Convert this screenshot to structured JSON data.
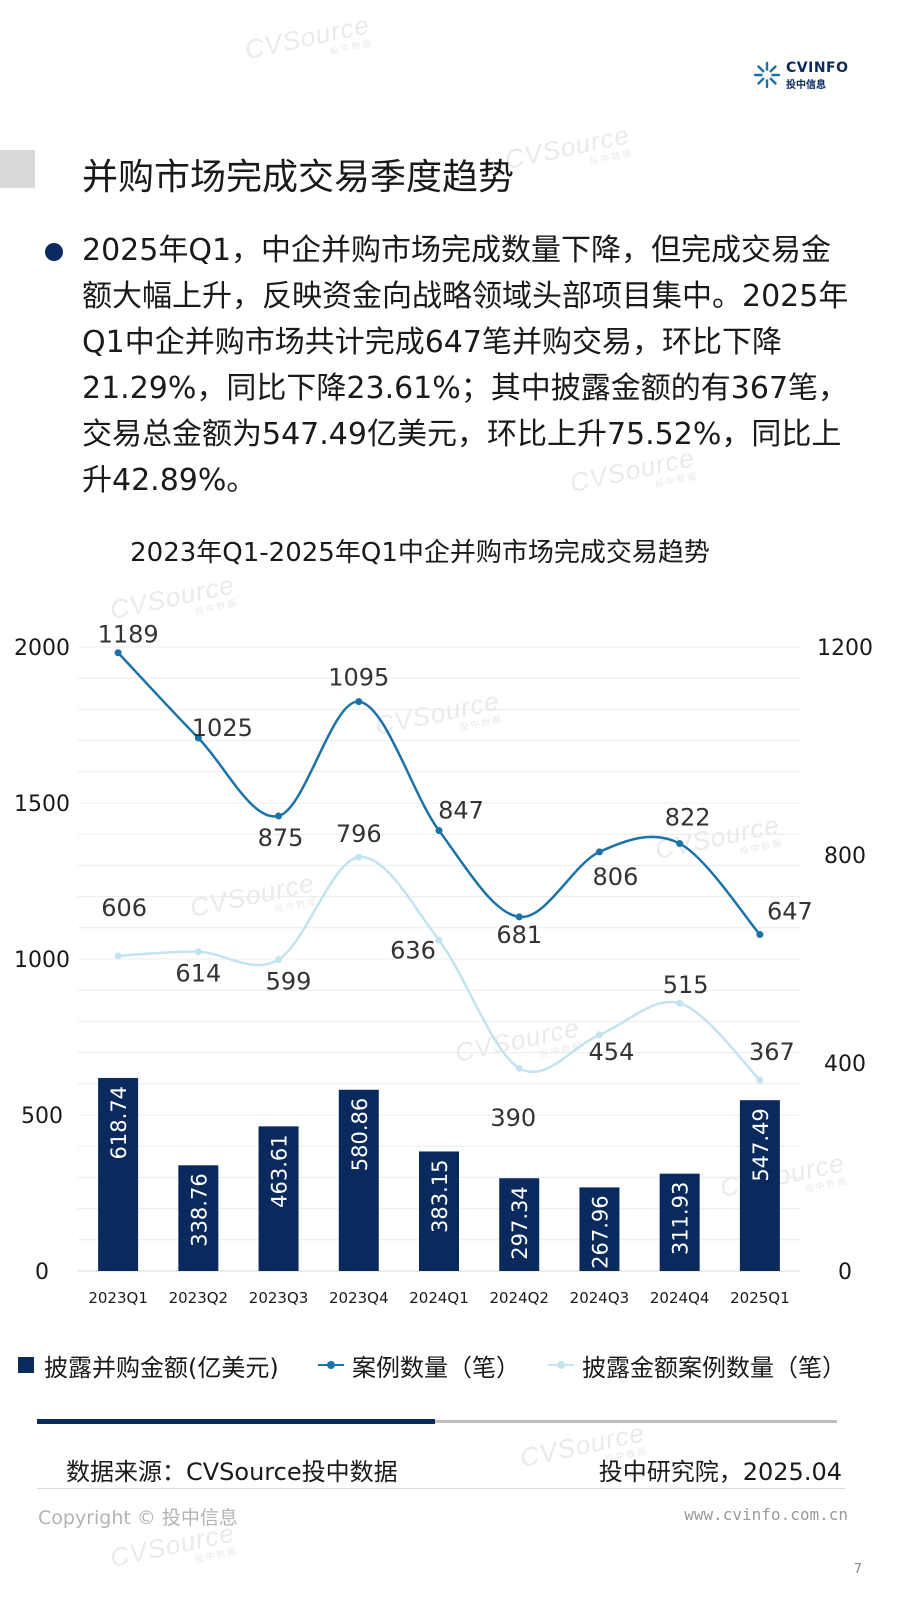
{
  "header": {
    "logo_top": "CVINFO",
    "logo_bottom": "投中信息",
    "title": "并购市场完成交易季度趋势"
  },
  "summary": {
    "text": "2025年Q1，中企并购市场完成数量下降，但完成交易金额大幅上升，反映资金向战略领域头部项目集中。2025年Q1中企并购市场共计完成647笔并购交易，环比下降21.29%，同比下降23.61%；其中披露金额的有367笔，交易总金额为547.49亿美元，环比上升75.52%，同比上升42.89%。"
  },
  "chart_data": {
    "type": "bar",
    "title": "2023年Q1-2025年Q1中企并购市场完成交易趋势",
    "categories": [
      "2023Q1",
      "2023Q2",
      "2023Q3",
      "2023Q4",
      "2024Q1",
      "2024Q2",
      "2024Q3",
      "2024Q4",
      "2025Q1"
    ],
    "series": [
      {
        "name": "披露并购金额(亿美元)",
        "type": "bar",
        "axis": "left",
        "values": [
          618.74,
          338.76,
          463.61,
          580.86,
          383.15,
          297.34,
          267.96,
          311.93,
          547.49
        ]
      },
      {
        "name": "案例数量（笔）",
        "type": "line",
        "axis": "right",
        "values": [
          1189,
          1025,
          875,
          1095,
          847,
          681,
          806,
          822,
          647
        ]
      },
      {
        "name": "披露金额案例数量（笔）",
        "type": "line",
        "axis": "right",
        "values": [
          606,
          614,
          599,
          796,
          636,
          390,
          454,
          515,
          367
        ]
      }
    ],
    "y_left": {
      "min": 0,
      "max": 2000,
      "ticks": [
        0,
        500,
        1000,
        1500,
        2000
      ]
    },
    "y_right": {
      "min": 0,
      "max": 1200,
      "ticks": [
        0,
        400,
        800,
        1200
      ]
    },
    "legend_position": "bottom",
    "colors": {
      "bar": "#0a2a5e",
      "line_total": "#1a73a8",
      "line_disclosed": "#c2e3f0"
    }
  },
  "footer": {
    "source": "数据来源：CVSource投中数据",
    "org": "投中研究院，2025.04",
    "copyright": "Copyright © 投中信息",
    "website": "www.cvinfo.com.cn",
    "page": "7"
  },
  "watermark": {
    "brand": "CVSource",
    "sub": "投中数据"
  }
}
